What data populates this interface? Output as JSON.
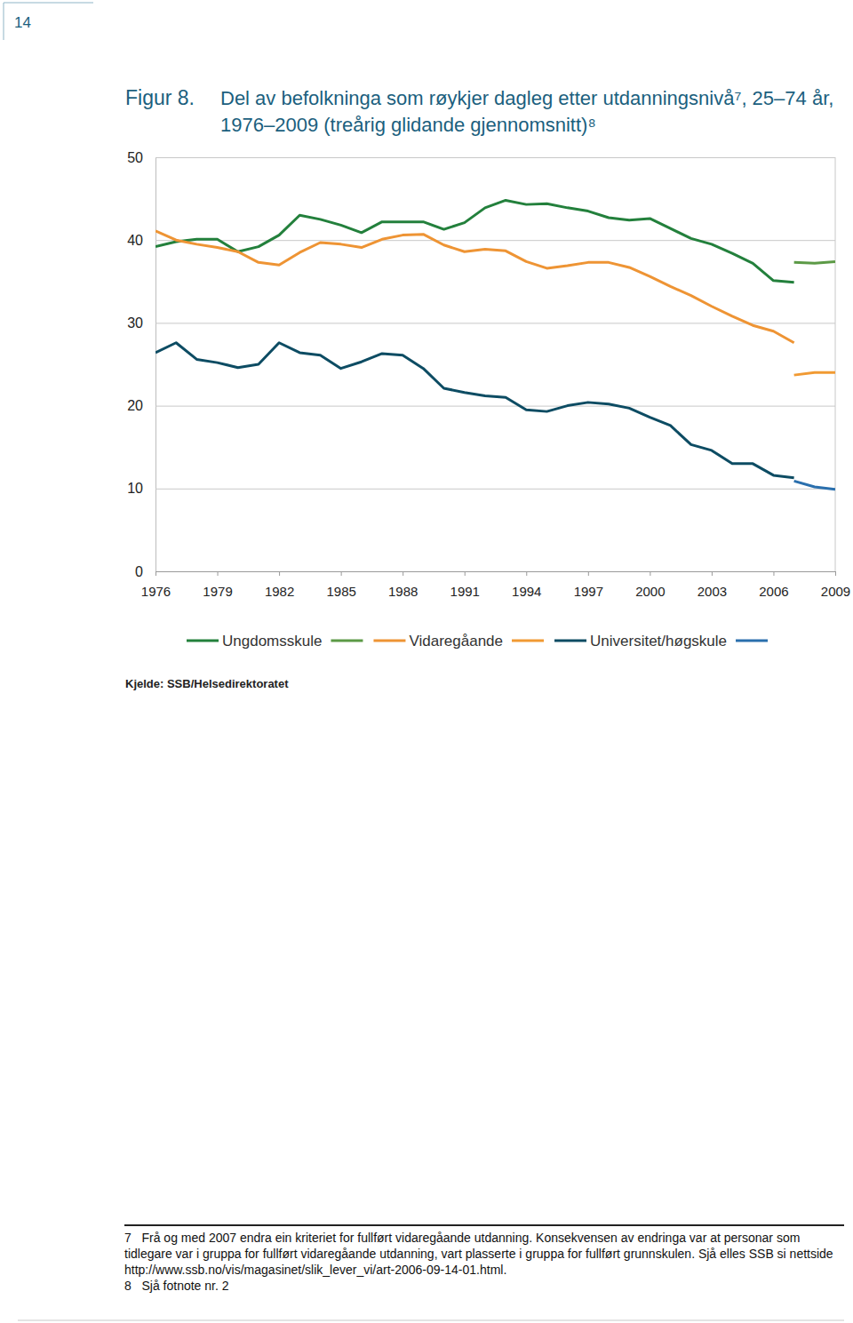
{
  "page_number": "14",
  "figure_label": "Figur 8.",
  "chart_data": {
    "type": "line",
    "title": "Del av befolkninga som røykjer dagleg etter utdanningsnivå⁷, 25–74 år, 1976–2009 (treårig glidande gjennomsnitt)⁸",
    "x": [
      1976,
      1977,
      1978,
      1979,
      1980,
      1981,
      1982,
      1983,
      1984,
      1985,
      1986,
      1987,
      1988,
      1989,
      1990,
      1991,
      1992,
      1993,
      1994,
      1995,
      1996,
      1997,
      1998,
      1999,
      2000,
      2001,
      2002,
      2003,
      2004,
      2005,
      2006,
      2007,
      2008,
      2009
    ],
    "xlim": [
      1976,
      2009
    ],
    "xticks": [
      1976,
      1979,
      1982,
      1985,
      1988,
      1991,
      1994,
      1997,
      2000,
      2003,
      2006,
      2009
    ],
    "ylim": [
      0,
      50
    ],
    "yticks": [
      0,
      10,
      20,
      30,
      40,
      50
    ],
    "grid": true,
    "legend": "bottom",
    "series": [
      {
        "name": "Ungdomsskule",
        "color": "#23803c",
        "values": [
          39.2,
          39.8,
          40.1,
          40.1,
          38.6,
          39.2,
          40.6,
          43.0,
          42.5,
          41.8,
          40.9,
          42.2,
          42.2,
          42.2,
          41.3,
          42.1,
          43.9,
          44.8,
          44.3,
          44.4,
          43.9,
          43.5,
          42.7,
          42.4,
          42.6,
          41.4,
          40.2,
          39.5,
          38.4,
          37.2,
          35.1,
          34.9,
          null,
          null
        ]
      },
      {
        "color": "#5c9a46",
        "values": [
          null,
          null,
          null,
          null,
          null,
          null,
          null,
          null,
          null,
          null,
          null,
          null,
          null,
          null,
          null,
          null,
          null,
          null,
          null,
          null,
          null,
          null,
          null,
          null,
          null,
          null,
          null,
          null,
          null,
          null,
          null,
          37.3,
          37.2,
          37.4
        ]
      },
      {
        "name": "Vidaregåande",
        "color": "#ee9434",
        "values": [
          41.1,
          40.0,
          39.5,
          39.1,
          38.6,
          37.3,
          37.0,
          38.5,
          39.7,
          39.5,
          39.1,
          40.1,
          40.6,
          40.7,
          39.4,
          38.6,
          38.9,
          38.7,
          37.4,
          36.6,
          36.9,
          37.3,
          37.3,
          36.7,
          35.6,
          34.4,
          33.3,
          32.0,
          30.8,
          29.7,
          29.0,
          27.6,
          null,
          null
        ]
      },
      {
        "color": "#f19a33",
        "values": [
          null,
          null,
          null,
          null,
          null,
          null,
          null,
          null,
          null,
          null,
          null,
          null,
          null,
          null,
          null,
          null,
          null,
          null,
          null,
          null,
          null,
          null,
          null,
          null,
          null,
          null,
          null,
          null,
          null,
          null,
          null,
          23.7,
          24.0,
          24.0
        ]
      },
      {
        "name": "Universitet/høgskule",
        "color": "#0d4c63",
        "values": [
          26.4,
          27.6,
          25.6,
          25.2,
          24.6,
          25.0,
          27.6,
          26.4,
          26.1,
          24.5,
          25.3,
          26.3,
          26.1,
          24.5,
          22.1,
          21.6,
          21.2,
          21.0,
          19.5,
          19.3,
          20.0,
          20.4,
          20.2,
          19.7,
          18.6,
          17.6,
          15.3,
          14.6,
          13.0,
          13.0,
          11.6,
          11.3,
          null,
          null
        ]
      },
      {
        "color": "#2a6fad",
        "values": [
          null,
          null,
          null,
          null,
          null,
          null,
          null,
          null,
          null,
          null,
          null,
          null,
          null,
          null,
          null,
          null,
          null,
          null,
          null,
          null,
          null,
          null,
          null,
          null,
          null,
          null,
          null,
          null,
          null,
          null,
          null,
          10.9,
          10.2,
          9.9
        ]
      }
    ]
  },
  "source": "Kjelde: SSB/Helsedirektoratet",
  "footnotes": [
    {
      "number": "7",
      "text": "Frå og med 2007 endra ein kriteriet for fullført vidaregåande utdanning. Konsekvensen av endringa var at personar som tidlegare var  i gruppa for fullført vidaregåande utdanning, vart plasserte i gruppa for fullført grunnskulen. Sjå elles SSB si nettside http://www.ssb.no/vis/magasinet/slik_lever_vi/art-2006-09-14-01.html."
    },
    {
      "number": "8",
      "text": "Sjå fotnote nr. 2"
    }
  ]
}
